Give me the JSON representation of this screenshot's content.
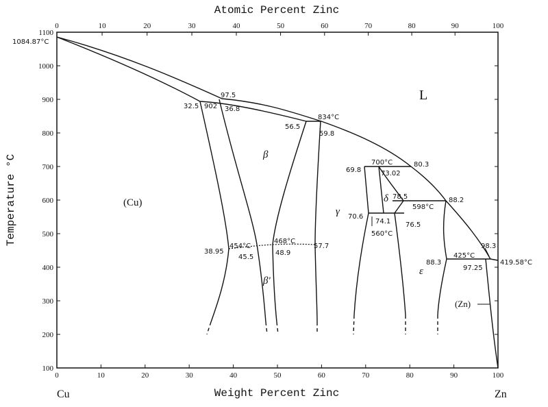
{
  "axes": {
    "top_label": "Atomic Percent Zinc",
    "bottom_label": "Weight Percent Zinc",
    "y_label": "Temperature °C",
    "left_end": "Cu",
    "right_end": "Zn",
    "xticks": [
      0,
      10,
      20,
      30,
      40,
      50,
      60,
      70,
      80,
      90,
      100
    ],
    "top_ticks": [
      0,
      10,
      20,
      30,
      40,
      50,
      60,
      70,
      80,
      90,
      100
    ],
    "yticks": [
      100,
      200,
      300,
      400,
      500,
      600,
      700,
      800,
      900,
      1000,
      1100
    ],
    "xlim": [
      0,
      100
    ],
    "ylim": [
      100,
      1100
    ]
  },
  "phases": [
    "L",
    "β",
    "β'",
    "γ",
    "δ",
    "ε",
    "(Cu)",
    "(Zn)"
  ],
  "annotations": [
    "1084.87°C",
    "97.5",
    "32.5",
    "902",
    "36.8",
    "834°C",
    "56.5",
    "59.8",
    "700°C",
    "69.8",
    "73.02",
    "80.3",
    "78.5",
    "598°C",
    "88.2",
    "70.6",
    "74.1",
    "560°C",
    "76.5",
    "38.95",
    "454°C",
    "45.5",
    "468°C",
    "48.9",
    "57.7",
    "425°C",
    "98.3",
    "88.3",
    "97.25",
    "419.58°C"
  ]
}
